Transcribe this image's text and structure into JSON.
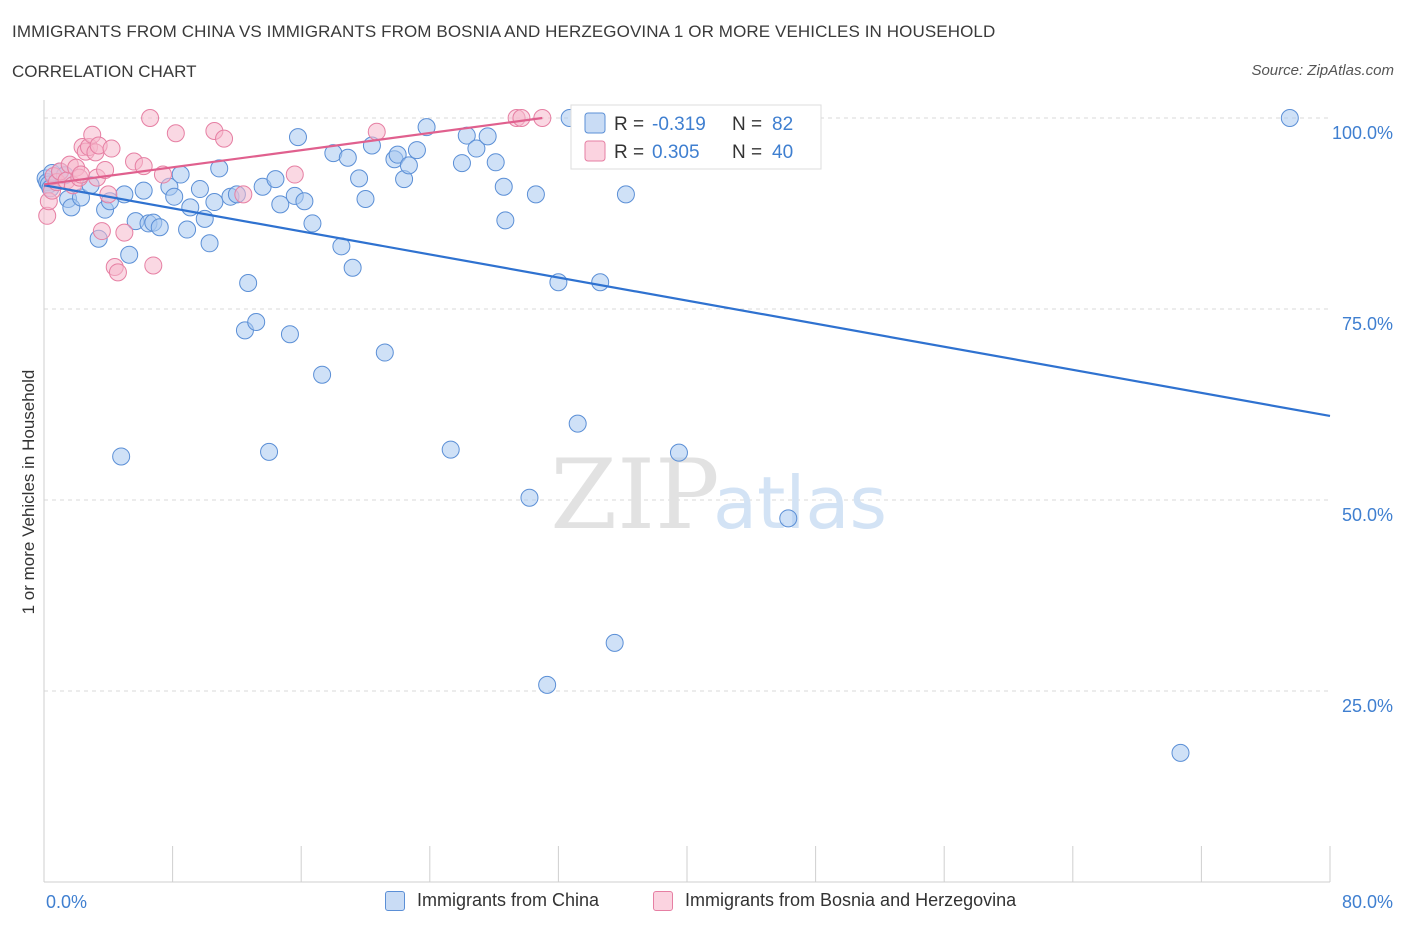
{
  "title": "IMMIGRANTS FROM CHINA VS IMMIGRANTS FROM BOSNIA AND HERZEGOVINA 1 OR MORE VEHICLES IN HOUSEHOLD",
  "subtitle": "CORRELATION CHART",
  "source": "Source: ZipAtlas.com",
  "watermark": {
    "zip": "ZIP",
    "atlas": "atlas"
  },
  "colors": {
    "china_fill": "#a8c8f0",
    "china_stroke": "#5b8fd6",
    "china_line": "#2f72d0",
    "bosnia_fill": "#f5b8cc",
    "bosnia_stroke": "#e67fa3",
    "bosnia_line": "#e0608e",
    "axis_text": "#3f7fd0",
    "grid": "#d9d9d9"
  },
  "legend_box": {
    "china": {
      "r_label": "R =",
      "r_value": "-0.319",
      "n_label": "N =",
      "n_value": "82"
    },
    "bosnia": {
      "r_label": "R =",
      "r_value": "0.305",
      "n_label": "N =",
      "n_value": "40"
    }
  },
  "chart_data": {
    "type": "scatter",
    "title": "IMMIGRANTS FROM CHINA VS IMMIGRANTS FROM BOSNIA AND HERZEGOVINA 1 OR MORE VEHICLES IN HOUSEHOLD",
    "xlabel": "",
    "ylabel": "1 or more Vehicles in Household",
    "xlim": [
      0,
      80
    ],
    "ylim": [
      0,
      100
    ],
    "x_tick_labels": [
      "0.0%",
      "80.0%"
    ],
    "y_tick_labels": [
      {
        "value": 100,
        "label": "100.0%"
      },
      {
        "value": 75,
        "label": "75.0%"
      },
      {
        "value": 50,
        "label": "50.0%"
      },
      {
        "value": 25,
        "label": "25.0%"
      }
    ],
    "legend_position": "top-center",
    "series": [
      {
        "name": "Immigrants from China",
        "r": -0.319,
        "n": 82,
        "trend": {
          "x": [
            0,
            80
          ],
          "y": [
            91.2,
            61.0
          ]
        },
        "points": [
          [
            0.1,
            92.1
          ],
          [
            0.2,
            91.6
          ],
          [
            0.3,
            91.3
          ],
          [
            0.4,
            90.8
          ],
          [
            0.5,
            92.8
          ],
          [
            1.0,
            93.0
          ],
          [
            1.3,
            92.5
          ],
          [
            1.5,
            89.4
          ],
          [
            1.7,
            88.3
          ],
          [
            2.3,
            89.6
          ],
          [
            2.9,
            91.2
          ],
          [
            3.4,
            84.2
          ],
          [
            3.8,
            88.0
          ],
          [
            4.1,
            89.1
          ],
          [
            4.8,
            55.7
          ],
          [
            5.0,
            90.0
          ],
          [
            5.3,
            82.1
          ],
          [
            5.7,
            86.5
          ],
          [
            6.2,
            90.5
          ],
          [
            6.5,
            86.2
          ],
          [
            6.8,
            86.3
          ],
          [
            7.2,
            85.7
          ],
          [
            7.8,
            91.0
          ],
          [
            8.1,
            89.7
          ],
          [
            8.5,
            92.6
          ],
          [
            8.9,
            85.4
          ],
          [
            9.1,
            88.3
          ],
          [
            9.7,
            90.7
          ],
          [
            10.0,
            86.8
          ],
          [
            10.3,
            83.6
          ],
          [
            10.6,
            89.0
          ],
          [
            10.9,
            93.4
          ],
          [
            11.6,
            89.7
          ],
          [
            12.0,
            90.0
          ],
          [
            12.5,
            72.2
          ],
          [
            12.7,
            78.4
          ],
          [
            13.2,
            73.3
          ],
          [
            13.6,
            91.0
          ],
          [
            14.0,
            56.3
          ],
          [
            14.4,
            92.0
          ],
          [
            14.7,
            88.7
          ],
          [
            15.3,
            71.7
          ],
          [
            15.6,
            89.8
          ],
          [
            15.8,
            97.5
          ],
          [
            16.2,
            89.1
          ],
          [
            16.7,
            86.2
          ],
          [
            17.3,
            66.4
          ],
          [
            18.0,
            95.4
          ],
          [
            18.5,
            83.2
          ],
          [
            18.9,
            94.8
          ],
          [
            19.2,
            80.4
          ],
          [
            19.6,
            92.1
          ],
          [
            20.0,
            89.4
          ],
          [
            20.4,
            96.4
          ],
          [
            21.2,
            69.3
          ],
          [
            21.8,
            94.6
          ],
          [
            22.0,
            95.2
          ],
          [
            22.4,
            92.0
          ],
          [
            22.7,
            93.8
          ],
          [
            23.2,
            95.8
          ],
          [
            23.8,
            98.8
          ],
          [
            25.3,
            56.6
          ],
          [
            26.0,
            94.1
          ],
          [
            26.3,
            97.7
          ],
          [
            26.9,
            96.0
          ],
          [
            27.6,
            97.6
          ],
          [
            28.1,
            94.2
          ],
          [
            28.6,
            91.0
          ],
          [
            28.7,
            86.6
          ],
          [
            30.2,
            50.3
          ],
          [
            30.6,
            90.0
          ],
          [
            31.3,
            25.8
          ],
          [
            32.0,
            78.5
          ],
          [
            32.7,
            100.0
          ],
          [
            33.2,
            60.0
          ],
          [
            34.6,
            78.5
          ],
          [
            35.5,
            31.3
          ],
          [
            36.2,
            90.0
          ],
          [
            39.5,
            56.2
          ],
          [
            46.3,
            47.6
          ],
          [
            70.7,
            16.9
          ],
          [
            77.5,
            100.0
          ]
        ]
      },
      {
        "name": "Immigrants from Bosnia and Herzegovina",
        "r": 0.305,
        "n": 40,
        "trend": {
          "x": [
            0,
            31
          ],
          "y": [
            91.3,
            100.0
          ]
        },
        "points": [
          [
            0.2,
            87.2
          ],
          [
            0.3,
            89.1
          ],
          [
            0.5,
            90.5
          ],
          [
            0.6,
            92.4
          ],
          [
            0.8,
            91.6
          ],
          [
            1.0,
            93.0
          ],
          [
            1.4,
            91.8
          ],
          [
            1.6,
            93.9
          ],
          [
            1.8,
            91.2
          ],
          [
            2.0,
            93.5
          ],
          [
            2.2,
            92.2
          ],
          [
            2.3,
            92.6
          ],
          [
            2.4,
            96.2
          ],
          [
            2.6,
            95.6
          ],
          [
            2.8,
            96.2
          ],
          [
            3.0,
            97.8
          ],
          [
            3.2,
            95.5
          ],
          [
            3.3,
            92.2
          ],
          [
            3.4,
            96.4
          ],
          [
            3.6,
            85.2
          ],
          [
            3.8,
            93.2
          ],
          [
            4.0,
            90.0
          ],
          [
            4.2,
            96.0
          ],
          [
            4.4,
            80.5
          ],
          [
            4.6,
            79.8
          ],
          [
            5.0,
            85.0
          ],
          [
            5.6,
            94.3
          ],
          [
            6.2,
            93.7
          ],
          [
            6.6,
            100.0
          ],
          [
            6.8,
            80.7
          ],
          [
            7.4,
            92.6
          ],
          [
            8.2,
            98.0
          ],
          [
            10.6,
            98.3
          ],
          [
            11.2,
            97.3
          ],
          [
            12.4,
            90.0
          ],
          [
            15.6,
            92.6
          ],
          [
            20.7,
            98.2
          ],
          [
            29.4,
            100.0
          ],
          [
            29.7,
            100.0
          ],
          [
            31.0,
            100.0
          ]
        ]
      }
    ]
  },
  "legend_bottom": {
    "china": "Immigrants from China",
    "bosnia": "Immigrants from Bosnia and Herzegovina"
  }
}
